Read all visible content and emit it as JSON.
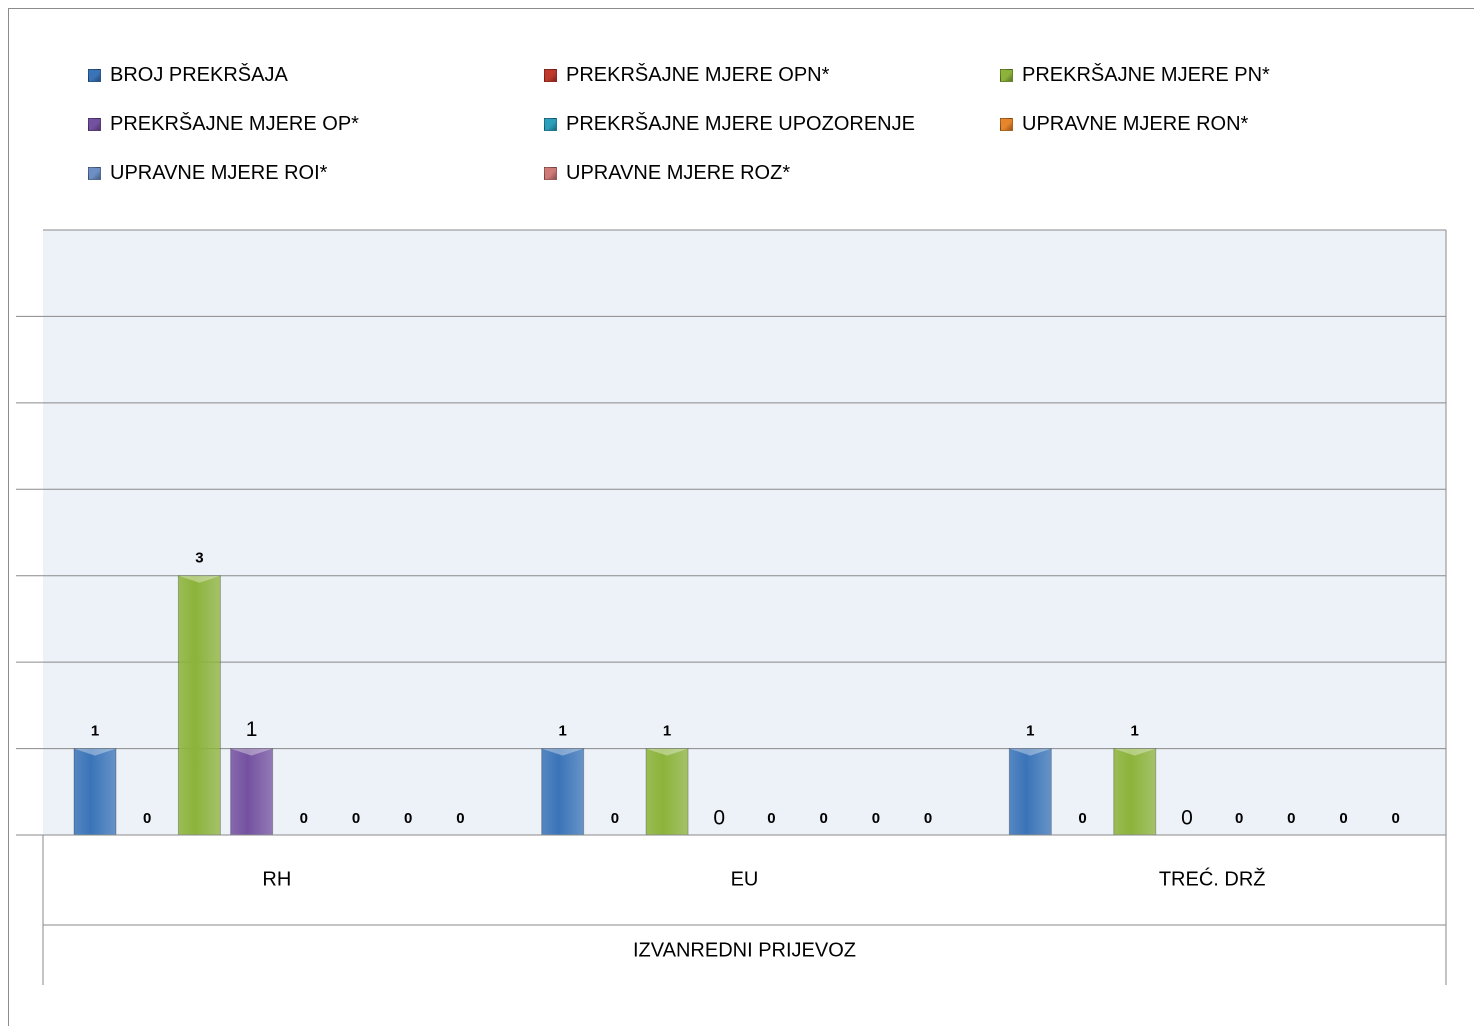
{
  "chart_data": {
    "type": "bar",
    "group_label": "IZVANREDNI PRIJEVOZ",
    "categories": [
      "RH",
      "EU",
      "TREĆ. DRŽ"
    ],
    "ylim": [
      0,
      7
    ],
    "grid": true,
    "legend_position": "top",
    "series": [
      {
        "name": "BROJ PREKRŠAJA",
        "color": "#3a74b8",
        "values": [
          1,
          1,
          1
        ],
        "label_style": [
          "bold",
          "bold",
          "bold"
        ]
      },
      {
        "name": "PREKRŠAJNE MJERE OPN*",
        "color": "#c0392b",
        "values": [
          0,
          0,
          0
        ],
        "label_style": [
          "bold",
          "bold",
          "bold"
        ]
      },
      {
        "name": "PREKRŠAJNE MJERE PN*",
        "color": "#8cb33a",
        "values": [
          3,
          1,
          1
        ],
        "label_style": [
          "bold",
          "bold",
          "bold"
        ]
      },
      {
        "name": "PREKRŠAJNE MJERE OP*",
        "color": "#7451a0",
        "values": [
          1,
          0,
          0
        ],
        "label_style": [
          "plain",
          "plain",
          "plain"
        ]
      },
      {
        "name": "PREKRŠAJNE MJERE UPOZORENJE",
        "color": "#2c9fbd",
        "values": [
          0,
          0,
          0
        ],
        "label_style": [
          "bold",
          "bold",
          "bold"
        ]
      },
      {
        "name": "UPRAVNE MJERE RON*",
        "color": "#e8842a",
        "values": [
          0,
          0,
          0
        ],
        "label_style": [
          "bold",
          "bold",
          "bold"
        ]
      },
      {
        "name": "UPRAVNE MJERE ROI*",
        "color": "#6d8fc4",
        "values": [
          0,
          0,
          0
        ],
        "label_style": [
          "bold",
          "bold",
          "bold"
        ]
      },
      {
        "name": "UPRAVNE MJERE ROZ*",
        "color": "#d07a78",
        "values": [
          0,
          0,
          0
        ],
        "label_style": [
          "bold",
          "bold",
          "bold"
        ]
      }
    ]
  }
}
